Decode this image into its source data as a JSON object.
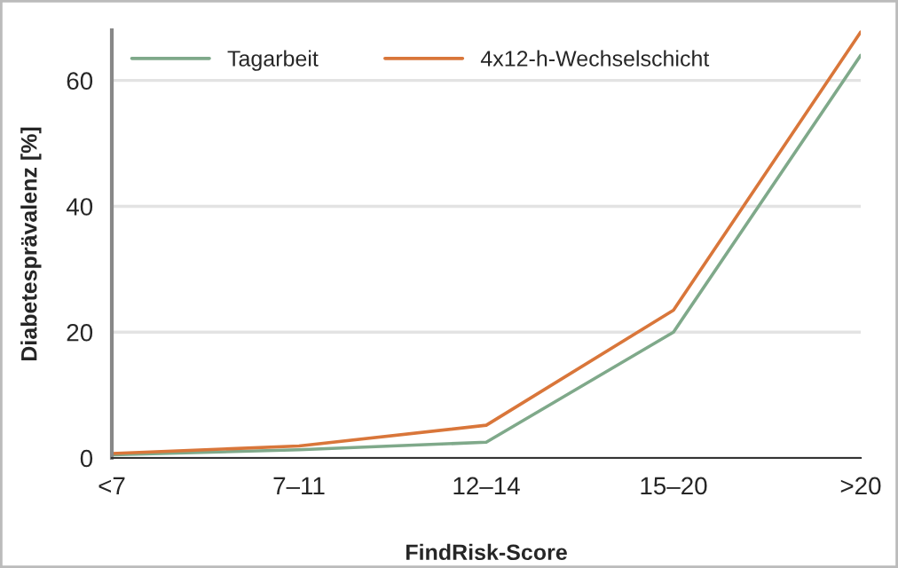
{
  "chart_data": {
    "type": "line",
    "xlabel": "FindRisk-Score",
    "ylabel": "Diabetesprävalenz [%]",
    "categories": [
      "<7",
      "7–11",
      "12–14",
      "15–20",
      ">20"
    ],
    "series": [
      {
        "name": "Tagarbeit",
        "color": "#7fa98a",
        "values": [
          0.5,
          1.3,
          2.5,
          20,
          64
        ]
      },
      {
        "name": "4x12-h-Wechselschicht",
        "color": "#d9763a",
        "values": [
          0.7,
          1.9,
          5.2,
          23.5,
          67.7
        ]
      }
    ],
    "ylim": [
      0,
      68
    ],
    "yticks": [
      0,
      20,
      40,
      60
    ],
    "grid": "y",
    "legend": "top left"
  }
}
